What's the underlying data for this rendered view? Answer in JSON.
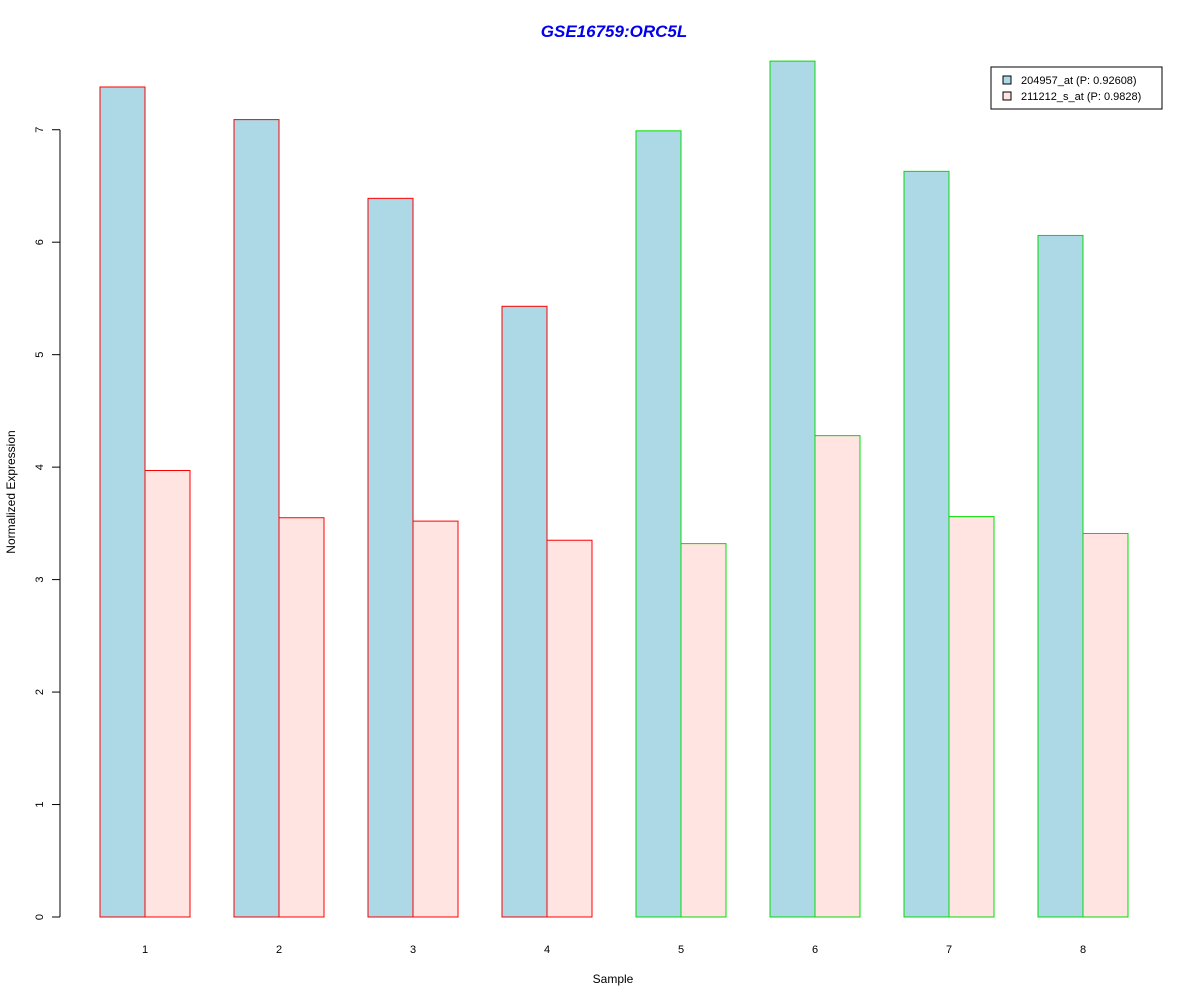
{
  "chart_data": {
    "type": "bar",
    "title": "GSE16759:ORC5L",
    "xlabel": "Sample",
    "ylabel": "Normalized Expression",
    "categories": [
      "1",
      "2",
      "3",
      "4",
      "5",
      "6",
      "7",
      "8"
    ],
    "ylim": [
      0,
      7.62
    ],
    "yticks": [
      "0",
      "1",
      "2",
      "3",
      "4",
      "5",
      "6",
      "7"
    ],
    "series": [
      {
        "name": "204957_at (P: 0.92608)",
        "fill": "#add8e6",
        "values": [
          7.38,
          7.09,
          6.39,
          5.43,
          6.99,
          7.61,
          6.63,
          6.06
        ]
      },
      {
        "name": "211212_s_at (P: 0.9828)",
        "fill": "#ffe4e1",
        "values": [
          3.97,
          3.55,
          3.52,
          3.35,
          3.32,
          4.28,
          3.56,
          3.41
        ]
      }
    ],
    "border_colors": [
      "#ff0000",
      "#ff0000",
      "#ff0000",
      "#ff0000",
      "#00dd00",
      "#00dd00",
      "#00dd00",
      "#00dd00"
    ],
    "title_color": "#0000ee",
    "legend_position": "top-right",
    "grid": false
  }
}
